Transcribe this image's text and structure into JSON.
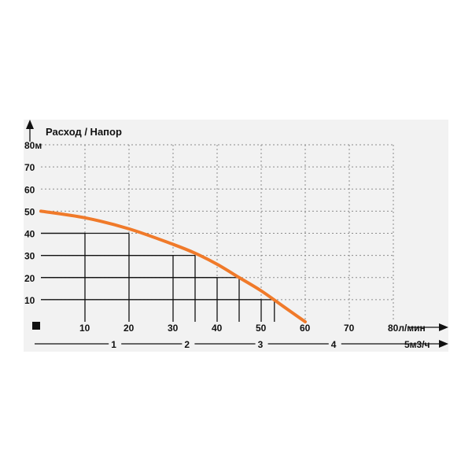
{
  "chart_data": {
    "type": "line",
    "title": "Расход / Напор",
    "ylabel": "",
    "xlabel": "",
    "y_unit": "м",
    "x_unit": "л/мин",
    "x2_unit": "м3/ч",
    "ylim": [
      0,
      80
    ],
    "xlim": [
      0,
      80
    ],
    "y_ticks": [
      10,
      20,
      30,
      40,
      50,
      60,
      70,
      80
    ],
    "x_ticks": [
      10,
      20,
      30,
      40,
      50,
      60,
      70,
      80
    ],
    "y_tick_labels": [
      "10",
      "20",
      "30",
      "40",
      "50",
      "60",
      "70",
      "80м"
    ],
    "x_tick_labels": [
      "10",
      "20",
      "30",
      "40",
      "50",
      "60",
      "70",
      "80л/мин"
    ],
    "x2_ticks": [
      1,
      2,
      3,
      4,
      5
    ],
    "x2_tick_labels": [
      "1",
      "2",
      "3",
      "4",
      "5м3/ч"
    ],
    "grid": true,
    "series": [
      {
        "color": "#f07a2a",
        "x": [
          0,
          10,
          20,
          30,
          35,
          40,
          45,
          50,
          55,
          60
        ],
        "y": [
          50,
          47,
          42,
          35,
          31,
          26,
          20,
          14,
          7,
          0
        ]
      }
    ],
    "operating_points": [
      {
        "x": 10,
        "y": 40
      },
      {
        "x": 20,
        "y": 40
      },
      {
        "x": 30,
        "y": 30
      },
      {
        "x": 35,
        "y": 30
      },
      {
        "x": 40,
        "y": 20
      },
      {
        "x": 45,
        "y": 20
      },
      {
        "x": 50,
        "y": 10
      },
      {
        "x": 53,
        "y": 10
      }
    ]
  }
}
